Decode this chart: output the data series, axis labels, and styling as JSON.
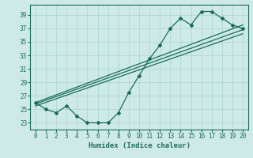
{
  "xlabel": "Humidex (Indice chaleur)",
  "bg_color": "#ceeae7",
  "grid_color": "#aad4d0",
  "line_color": "#1a6b5a",
  "xlim": [
    -0.5,
    20.5
  ],
  "ylim": [
    22.0,
    40.5
  ],
  "yticks": [
    23,
    25,
    27,
    29,
    31,
    33,
    35,
    37,
    39
  ],
  "xticks": [
    0,
    1,
    2,
    3,
    4,
    5,
    6,
    7,
    8,
    9,
    10,
    11,
    12,
    13,
    14,
    15,
    16,
    17,
    18,
    19,
    20
  ],
  "main_series_x": [
    0,
    1,
    2,
    3,
    4,
    5,
    6,
    7,
    8,
    9,
    10,
    11,
    12,
    13,
    14,
    15,
    16,
    17,
    18,
    19,
    20
  ],
  "main_series_y": [
    26,
    25,
    24.5,
    25.5,
    24,
    23,
    23,
    23,
    24.5,
    27.5,
    30,
    32.5,
    34.5,
    37,
    38.5,
    37.5,
    39.5,
    39.5,
    38.5,
    37.5,
    37
  ],
  "line1_x": [
    0,
    20
  ],
  "line1_y": [
    26,
    37.5
  ],
  "line2_x": [
    0,
    20
  ],
  "line2_y": [
    25.8,
    36.8
  ],
  "line3_x": [
    0,
    20
  ],
  "line3_y": [
    25.5,
    36.2
  ]
}
